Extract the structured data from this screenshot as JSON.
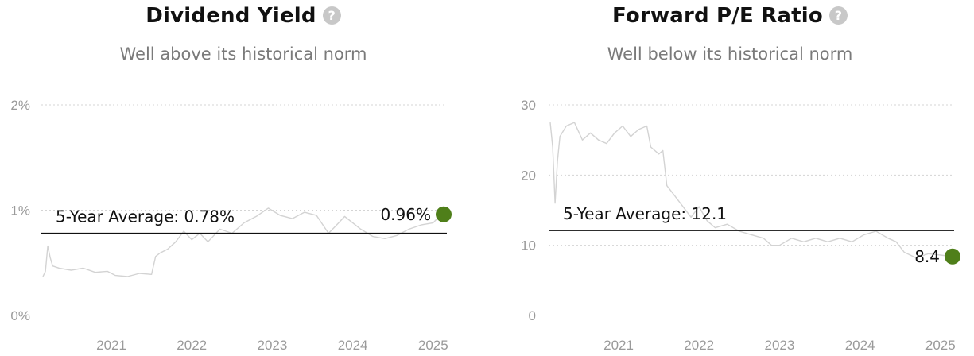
{
  "colors": {
    "marker": "#4f7f1a",
    "line": "#d3d3d3",
    "avg": "#111111"
  },
  "panels": [
    {
      "title": "Dividend Yield",
      "help_icon": "question-circle-icon",
      "subtitle": "Well above its historical norm",
      "avg_label": "5-Year Average: 0.78%",
      "current_label": "0.96%",
      "y_tick_labels": [
        "0%",
        "1%",
        "2%"
      ],
      "x_tick_labels": [
        "2021",
        "2022",
        "2023",
        "2024",
        "2025"
      ]
    },
    {
      "title": "Forward P/E Ratio",
      "help_icon": "question-circle-icon",
      "subtitle": "Well below its historical norm",
      "avg_label": "5-Year Average: 12.1",
      "current_label": "8.4",
      "y_tick_labels": [
        "0",
        "10",
        "20",
        "30"
      ],
      "x_tick_labels": [
        "2021",
        "2022",
        "2023",
        "2024",
        "2025"
      ]
    }
  ],
  "chart_data": [
    {
      "type": "line",
      "title": "Dividend Yield",
      "subtitle": "Well above its historical norm",
      "ylim": [
        0,
        2
      ],
      "y_ticks": [
        0,
        1,
        2
      ],
      "y_unit": "%",
      "x_range": [
        2020.13,
        2025.17
      ],
      "x_ticks": [
        2021,
        2022,
        2023,
        2024,
        2025
      ],
      "grid": true,
      "average": 0.78,
      "current": {
        "x": 2025.1,
        "y": 0.96
      },
      "series": [
        {
          "x": [
            2020.15,
            2020.18,
            2020.21,
            2020.24,
            2020.27,
            2020.35,
            2020.5,
            2020.65,
            2020.8,
            2020.95,
            2021.05,
            2021.2,
            2021.35,
            2021.5,
            2021.55,
            2021.6,
            2021.7,
            2021.8,
            2021.9,
            2022.0,
            2022.1,
            2022.2,
            2022.35,
            2022.5,
            2022.65,
            2022.8,
            2022.95,
            2023.1,
            2023.25,
            2023.4,
            2023.55,
            2023.7,
            2023.8,
            2023.9,
            2024.0,
            2024.1,
            2024.25,
            2024.4,
            2024.55,
            2024.7,
            2024.85,
            2025.0,
            2025.1
          ],
          "y": [
            0.37,
            0.42,
            0.66,
            0.55,
            0.47,
            0.45,
            0.43,
            0.45,
            0.41,
            0.42,
            0.38,
            0.37,
            0.4,
            0.39,
            0.56,
            0.59,
            0.63,
            0.7,
            0.8,
            0.72,
            0.78,
            0.7,
            0.82,
            0.78,
            0.88,
            0.94,
            1.02,
            0.95,
            0.92,
            0.98,
            0.95,
            0.78,
            0.86,
            0.94,
            0.88,
            0.82,
            0.75,
            0.73,
            0.76,
            0.82,
            0.86,
            0.88,
            0.96
          ]
        }
      ]
    },
    {
      "type": "line",
      "title": "Forward P/E Ratio",
      "subtitle": "Well below its historical norm",
      "ylim": [
        0,
        30
      ],
      "y_ticks": [
        0,
        10,
        20,
        30
      ],
      "x_range": [
        2020.13,
        2025.17
      ],
      "x_ticks": [
        2021,
        2022,
        2023,
        2024,
        2025
      ],
      "grid": true,
      "average": 12.1,
      "current": {
        "x": 2025.15,
        "y": 8.4
      },
      "series": [
        {
          "x": [
            2020.15,
            2020.18,
            2020.21,
            2020.24,
            2020.27,
            2020.35,
            2020.45,
            2020.55,
            2020.65,
            2020.75,
            2020.85,
            2020.95,
            2021.05,
            2021.15,
            2021.25,
            2021.35,
            2021.4,
            2021.5,
            2021.55,
            2021.6,
            2021.7,
            2021.8,
            2021.9,
            2022.0,
            2022.1,
            2022.2,
            2022.35,
            2022.5,
            2022.65,
            2022.8,
            2022.9,
            2023.0,
            2023.15,
            2023.3,
            2023.45,
            2023.6,
            2023.75,
            2023.9,
            2024.05,
            2024.2,
            2024.35,
            2024.45,
            2024.55,
            2024.7,
            2024.85,
            2025.0,
            2025.15
          ],
          "y": [
            27.5,
            24.0,
            16.0,
            22.0,
            25.5,
            27.0,
            27.5,
            25.0,
            26.0,
            25.0,
            24.5,
            26.0,
            27.0,
            25.5,
            26.5,
            27.0,
            24.0,
            23.0,
            23.5,
            18.5,
            17.0,
            15.5,
            14.0,
            15.5,
            13.5,
            12.5,
            13.0,
            12.0,
            11.5,
            11.0,
            10.0,
            10.0,
            11.0,
            10.5,
            11.0,
            10.5,
            11.0,
            10.5,
            11.5,
            12.0,
            11.0,
            10.5,
            9.0,
            8.2,
            8.8,
            8.6,
            8.4
          ]
        }
      ]
    }
  ]
}
